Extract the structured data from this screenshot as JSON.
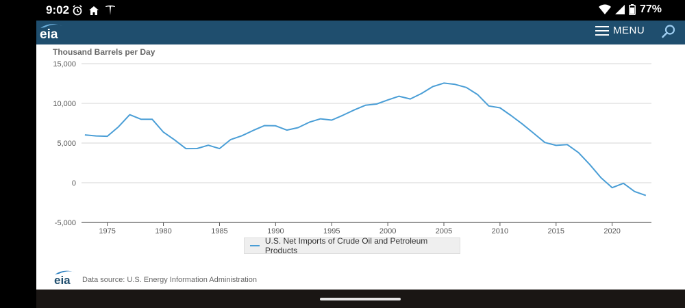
{
  "status_bar": {
    "time": "9:02",
    "battery": "77%",
    "icons": [
      "alarm-icon",
      "home-icon",
      "tesla-icon",
      "wifi-icon",
      "signal-icon",
      "battery-icon"
    ]
  },
  "navbar": {
    "logo_text": "eia",
    "menu_label": "MENU",
    "background": "#1f4e6e"
  },
  "footer": {
    "logo_text": "eia",
    "source": "Data source: U.S. Energy Information Administration"
  },
  "chart_data": {
    "type": "line",
    "title": "",
    "ylabel": "Thousand Barrels per Day",
    "xlabel": "",
    "xlim": [
      1972.7,
      2023.5
    ],
    "ylim": [
      -5000,
      15000
    ],
    "yticks": [
      15000,
      10000,
      5000,
      0,
      -5000
    ],
    "ytick_labels": [
      "15,000",
      "10,000",
      "5,000",
      "0",
      "-5,000"
    ],
    "xticks": [
      1975,
      1980,
      1985,
      1990,
      1995,
      2000,
      2005,
      2010,
      2015,
      2020
    ],
    "xtick_labels": [
      "1975",
      "1980",
      "1985",
      "1990",
      "1995",
      "2000",
      "2005",
      "2010",
      "2015",
      "2020"
    ],
    "grid": true,
    "legend_position": "bottom-center",
    "series": [
      {
        "name": "U.S. Net Imports of Crude Oil and Petroleum Products",
        "color": "#4a9ed6",
        "x": [
          1973,
          1974,
          1975,
          1976,
          1977,
          1978,
          1979,
          1980,
          1981,
          1982,
          1983,
          1984,
          1985,
          1986,
          1987,
          1988,
          1989,
          1990,
          1991,
          1992,
          1993,
          1994,
          1995,
          1996,
          1997,
          1998,
          1999,
          2000,
          2001,
          2002,
          2003,
          2004,
          2005,
          2006,
          2007,
          2008,
          2009,
          2010,
          2011,
          2012,
          2013,
          2014,
          2015,
          2016,
          2017,
          2018,
          2019,
          2020,
          2021,
          2022,
          2023
        ],
        "values": [
          6030,
          5900,
          5850,
          7050,
          8570,
          8000,
          7990,
          6370,
          5400,
          4300,
          4310,
          4720,
          4300,
          5440,
          5920,
          6590,
          7200,
          7170,
          6630,
          6940,
          7620,
          8050,
          7890,
          8500,
          9160,
          9760,
          9910,
          10420,
          10900,
          10550,
          11240,
          12100,
          12550,
          12390,
          12000,
          11110,
          9670,
          9440,
          8450,
          7390,
          6240,
          5070,
          4710,
          4800,
          3800,
          2300,
          640,
          -620,
          -70,
          -1100,
          -1600
        ]
      }
    ]
  }
}
